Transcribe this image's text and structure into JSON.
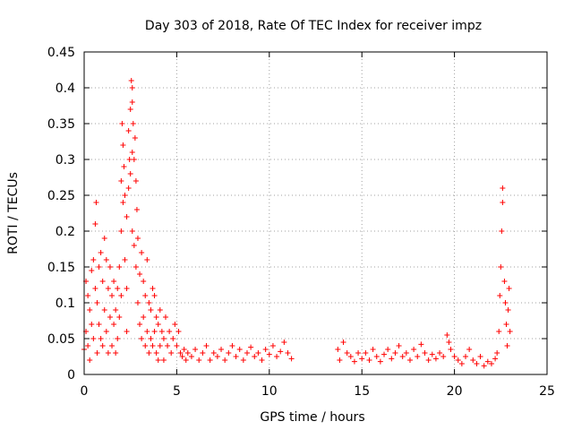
{
  "chart_data": {
    "type": "scatter",
    "title": "Day 303 of 2018, Rate Of TEC Index for receiver impz",
    "xlabel": "GPS time / hours",
    "ylabel": "ROTI / TECUs",
    "xlim": [
      0,
      25
    ],
    "ylim": [
      0,
      0.45
    ],
    "xticks": [
      0,
      5,
      10,
      15,
      20,
      25
    ],
    "xtick_labels": [
      "0",
      "5",
      "10",
      "15",
      "20",
      "25"
    ],
    "yticks": [
      0,
      0.05,
      0.1,
      0.15,
      0.2,
      0.25,
      0.3,
      0.35,
      0.4,
      0.45
    ],
    "ytick_labels": [
      "0",
      "0.05",
      "0.1",
      "0.15",
      "0.2",
      "0.25",
      "0.3",
      "0.35",
      "0.4",
      "0.45"
    ],
    "grid": true,
    "marker": "+",
    "marker_color": "#ff0000",
    "series": [
      {
        "name": "ROTI",
        "color": "#ff0000",
        "points": [
          [
            0.0,
            0.035
          ],
          [
            0.1,
            0.13
          ],
          [
            0.1,
            0.06
          ],
          [
            0.2,
            0.11
          ],
          [
            0.2,
            0.04
          ],
          [
            0.3,
            0.09
          ],
          [
            0.3,
            0.02
          ],
          [
            0.4,
            0.145
          ],
          [
            0.4,
            0.07
          ],
          [
            0.5,
            0.16
          ],
          [
            0.5,
            0.05
          ],
          [
            0.6,
            0.21
          ],
          [
            0.6,
            0.12
          ],
          [
            0.65,
            0.24
          ],
          [
            0.7,
            0.1
          ],
          [
            0.7,
            0.03
          ],
          [
            0.8,
            0.15
          ],
          [
            0.8,
            0.07
          ],
          [
            0.9,
            0.17
          ],
          [
            0.9,
            0.05
          ],
          [
            1.0,
            0.13
          ],
          [
            1.0,
            0.04
          ],
          [
            1.1,
            0.19
          ],
          [
            1.1,
            0.09
          ],
          [
            1.2,
            0.16
          ],
          [
            1.2,
            0.06
          ],
          [
            1.3,
            0.12
          ],
          [
            1.3,
            0.03
          ],
          [
            1.4,
            0.15
          ],
          [
            1.4,
            0.08
          ],
          [
            1.5,
            0.11
          ],
          [
            1.5,
            0.04
          ],
          [
            1.6,
            0.13
          ],
          [
            1.6,
            0.07
          ],
          [
            1.7,
            0.09
          ],
          [
            1.7,
            0.03
          ],
          [
            1.8,
            0.12
          ],
          [
            1.8,
            0.05
          ],
          [
            1.9,
            0.15
          ],
          [
            1.9,
            0.08
          ],
          [
            2.0,
            0.27
          ],
          [
            2.0,
            0.2
          ],
          [
            2.0,
            0.11
          ],
          [
            2.05,
            0.35
          ],
          [
            2.1,
            0.32
          ],
          [
            2.1,
            0.24
          ],
          [
            2.15,
            0.29
          ],
          [
            2.2,
            0.25
          ],
          [
            2.2,
            0.16
          ],
          [
            2.3,
            0.22
          ],
          [
            2.3,
            0.12
          ],
          [
            2.3,
            0.06
          ],
          [
            2.4,
            0.34
          ],
          [
            2.4,
            0.26
          ],
          [
            2.45,
            0.3
          ],
          [
            2.5,
            0.37
          ],
          [
            2.5,
            0.28
          ],
          [
            2.55,
            0.41
          ],
          [
            2.6,
            0.38
          ],
          [
            2.6,
            0.4
          ],
          [
            2.6,
            0.31
          ],
          [
            2.6,
            0.2
          ],
          [
            2.65,
            0.35
          ],
          [
            2.7,
            0.3
          ],
          [
            2.7,
            0.18
          ],
          [
            2.75,
            0.33
          ],
          [
            2.8,
            0.27
          ],
          [
            2.8,
            0.15
          ],
          [
            2.85,
            0.23
          ],
          [
            2.9,
            0.19
          ],
          [
            2.9,
            0.1
          ],
          [
            3.0,
            0.14
          ],
          [
            3.0,
            0.07
          ],
          [
            3.1,
            0.17
          ],
          [
            3.1,
            0.05
          ],
          [
            3.2,
            0.13
          ],
          [
            3.2,
            0.08
          ],
          [
            3.3,
            0.11
          ],
          [
            3.3,
            0.04
          ],
          [
            3.4,
            0.16
          ],
          [
            3.4,
            0.06
          ],
          [
            3.5,
            0.1
          ],
          [
            3.5,
            0.03
          ],
          [
            3.6,
            0.09
          ],
          [
            3.6,
            0.05
          ],
          [
            3.7,
            0.12
          ],
          [
            3.7,
            0.04
          ],
          [
            3.8,
            0.11
          ],
          [
            3.8,
            0.06
          ],
          [
            3.9,
            0.08
          ],
          [
            3.9,
            0.03
          ],
          [
            4.0,
            0.07
          ],
          [
            4.0,
            0.02
          ],
          [
            4.1,
            0.09
          ],
          [
            4.1,
            0.04
          ],
          [
            4.2,
            0.06
          ],
          [
            4.3,
            0.05
          ],
          [
            4.3,
            0.02
          ],
          [
            4.4,
            0.08
          ],
          [
            4.5,
            0.04
          ],
          [
            4.6,
            0.06
          ],
          [
            4.7,
            0.03
          ],
          [
            4.8,
            0.05
          ],
          [
            4.9,
            0.07
          ],
          [
            5.0,
            0.04
          ],
          [
            5.1,
            0.06
          ],
          [
            5.2,
            0.03
          ],
          [
            5.3,
            0.025
          ],
          [
            5.4,
            0.035
          ],
          [
            5.5,
            0.02
          ],
          [
            5.6,
            0.03
          ],
          [
            5.8,
            0.025
          ],
          [
            6.0,
            0.035
          ],
          [
            6.2,
            0.02
          ],
          [
            6.4,
            0.03
          ],
          [
            6.6,
            0.04
          ],
          [
            6.8,
            0.02
          ],
          [
            7.0,
            0.03
          ],
          [
            7.2,
            0.025
          ],
          [
            7.4,
            0.035
          ],
          [
            7.6,
            0.02
          ],
          [
            7.8,
            0.03
          ],
          [
            8.0,
            0.04
          ],
          [
            8.2,
            0.025
          ],
          [
            8.4,
            0.035
          ],
          [
            8.6,
            0.02
          ],
          [
            8.8,
            0.03
          ],
          [
            9.0,
            0.038
          ],
          [
            9.2,
            0.025
          ],
          [
            9.4,
            0.03
          ],
          [
            9.6,
            0.02
          ],
          [
            9.8,
            0.035
          ],
          [
            10.0,
            0.028
          ],
          [
            10.2,
            0.04
          ],
          [
            10.4,
            0.025
          ],
          [
            10.6,
            0.032
          ],
          [
            10.8,
            0.045
          ],
          [
            11.0,
            0.03
          ],
          [
            11.2,
            0.022
          ],
          [
            13.7,
            0.035
          ],
          [
            13.8,
            0.02
          ],
          [
            14.0,
            0.045
          ],
          [
            14.2,
            0.03
          ],
          [
            14.4,
            0.025
          ],
          [
            14.6,
            0.018
          ],
          [
            14.8,
            0.03
          ],
          [
            15.0,
            0.022
          ],
          [
            15.2,
            0.03
          ],
          [
            15.4,
            0.02
          ],
          [
            15.6,
            0.035
          ],
          [
            15.8,
            0.025
          ],
          [
            16.0,
            0.018
          ],
          [
            16.2,
            0.028
          ],
          [
            16.4,
            0.035
          ],
          [
            16.6,
            0.022
          ],
          [
            16.8,
            0.03
          ],
          [
            17.0,
            0.04
          ],
          [
            17.2,
            0.025
          ],
          [
            17.4,
            0.03
          ],
          [
            17.6,
            0.02
          ],
          [
            17.8,
            0.035
          ],
          [
            18.0,
            0.025
          ],
          [
            18.2,
            0.042
          ],
          [
            18.4,
            0.03
          ],
          [
            18.6,
            0.02
          ],
          [
            18.8,
            0.028
          ],
          [
            19.0,
            0.022
          ],
          [
            19.2,
            0.03
          ],
          [
            19.4,
            0.025
          ],
          [
            19.6,
            0.055
          ],
          [
            19.7,
            0.045
          ],
          [
            19.8,
            0.035
          ],
          [
            20.0,
            0.025
          ],
          [
            20.2,
            0.02
          ],
          [
            20.4,
            0.015
          ],
          [
            20.6,
            0.025
          ],
          [
            20.8,
            0.035
          ],
          [
            21.0,
            0.02
          ],
          [
            21.2,
            0.015
          ],
          [
            21.4,
            0.025
          ],
          [
            21.6,
            0.012
          ],
          [
            21.8,
            0.018
          ],
          [
            22.0,
            0.015
          ],
          [
            22.2,
            0.022
          ],
          [
            22.3,
            0.03
          ],
          [
            22.4,
            0.06
          ],
          [
            22.45,
            0.11
          ],
          [
            22.5,
            0.15
          ],
          [
            22.55,
            0.2
          ],
          [
            22.6,
            0.24
          ],
          [
            22.6,
            0.26
          ],
          [
            22.7,
            0.13
          ],
          [
            22.75,
            0.1
          ],
          [
            22.8,
            0.07
          ],
          [
            22.85,
            0.04
          ],
          [
            22.9,
            0.09
          ],
          [
            22.95,
            0.12
          ],
          [
            23.0,
            0.06
          ]
        ]
      }
    ]
  }
}
